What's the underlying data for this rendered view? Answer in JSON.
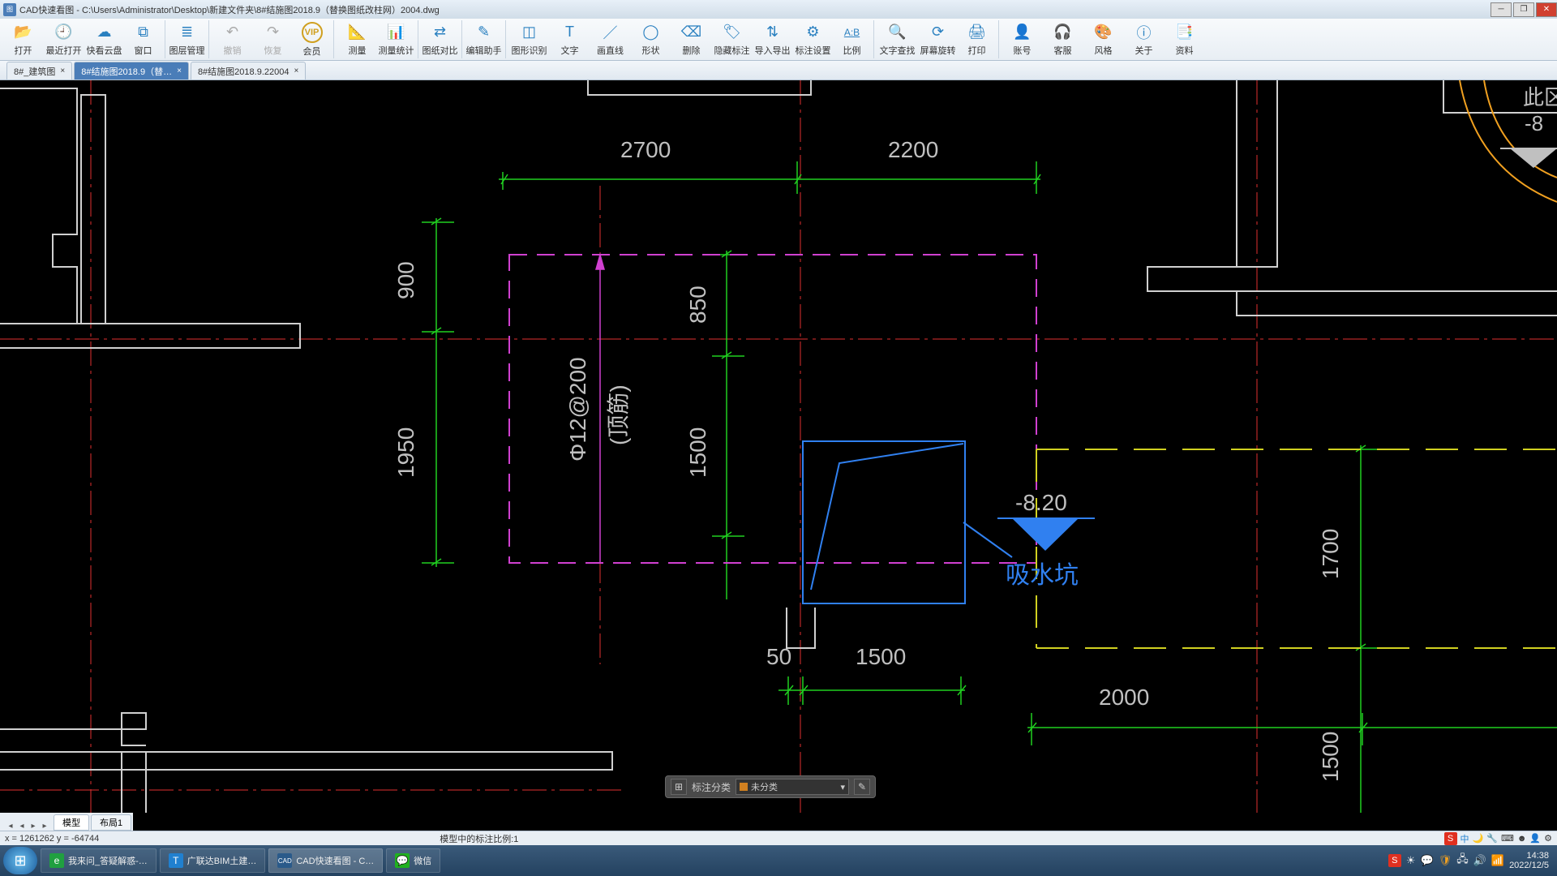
{
  "window": {
    "app_name": "CAD快速看图",
    "file_path": "C:\\Users\\Administrator\\Desktop\\新建文件夹\\8#结施图2018.9（替换图纸改柱网）2004.dwg"
  },
  "toolbar": [
    {
      "label": "打开",
      "icon": "📂",
      "color": "#2a80c0"
    },
    {
      "label": "最近打开",
      "icon": "🕘",
      "color": "#2a80c0"
    },
    {
      "label": "快看云盘",
      "icon": "☁",
      "color": "#2a80c0"
    },
    {
      "label": "窗口",
      "icon": "⧉",
      "color": "#2a80c0",
      "sep": true
    },
    {
      "label": "图层管理",
      "icon": "≣",
      "color": "#2a80c0",
      "sep": true
    },
    {
      "label": "撤销",
      "icon": "↶",
      "color": "#aaaaaa",
      "disabled": true
    },
    {
      "label": "恢复",
      "icon": "↷",
      "color": "#aaaaaa",
      "disabled": true
    },
    {
      "label": "会员",
      "icon": "VIP",
      "color": "#d0a020",
      "sep": true,
      "vip": true
    },
    {
      "label": "测量",
      "icon": "📐",
      "color": "#2a80c0"
    },
    {
      "label": "测量统计",
      "icon": "📊",
      "color": "#2a80c0",
      "sep": true
    },
    {
      "label": "图纸对比",
      "icon": "⇄",
      "color": "#2a80c0",
      "sep": true
    },
    {
      "label": "编辑助手",
      "icon": "✎",
      "color": "#2a80c0",
      "sep": true
    },
    {
      "label": "图形识别",
      "icon": "◫",
      "color": "#2a80c0"
    },
    {
      "label": "文字",
      "icon": "T",
      "color": "#2a80c0"
    },
    {
      "label": "画直线",
      "icon": "／",
      "color": "#2a80c0"
    },
    {
      "label": "形状",
      "icon": "◯",
      "color": "#2a80c0"
    },
    {
      "label": "删除",
      "icon": "⌫",
      "color": "#2a80c0"
    },
    {
      "label": "隐藏标注",
      "icon": "🏷",
      "color": "#2a80c0"
    },
    {
      "label": "导入导出",
      "icon": "⇅",
      "color": "#2a80c0"
    },
    {
      "label": "标注设置",
      "icon": "⚙",
      "color": "#2a80c0"
    },
    {
      "label": "比例",
      "icon": "A:B",
      "color": "#2a80c0",
      "sep": true,
      "ratio": true
    },
    {
      "label": "文字查找",
      "icon": "🔍",
      "color": "#2a80c0"
    },
    {
      "label": "屏幕旋转",
      "icon": "⟳",
      "color": "#2a80c0"
    },
    {
      "label": "打印",
      "icon": "🖨",
      "color": "#2a80c0",
      "sep": true
    },
    {
      "label": "账号",
      "icon": "👤",
      "color": "#2a80c0"
    },
    {
      "label": "客服",
      "icon": "🎧",
      "color": "#2a80c0"
    },
    {
      "label": "风格",
      "icon": "🎨",
      "color": "#2a80c0"
    },
    {
      "label": "关于",
      "icon": "ⓘ",
      "color": "#2a80c0"
    },
    {
      "label": "资料",
      "icon": "📑",
      "color": "#2a80c0"
    }
  ],
  "doc_tabs": [
    {
      "label": "8#_建筑图",
      "active": false
    },
    {
      "label": "8#结施图2018.9（替…",
      "active": true
    },
    {
      "label": "8#结施图2018.9.22004",
      "active": false
    }
  ],
  "drawing": {
    "colors": {
      "red": "#e03030",
      "green": "#20d020",
      "magenta": "#d040d0",
      "yellow": "#d0d020",
      "blue": "#3080f0",
      "white": "#d0d0d0",
      "orange": "#f0a020",
      "gray": "#c0c0c0"
    },
    "dims": {
      "d2700": "2700",
      "d2200": "2200",
      "d900": "900",
      "d1950": "1950",
      "d850": "850",
      "d1500": "1500",
      "d50": "50",
      "d1500b": "1500",
      "d2000": "2000",
      "d1700": "1700",
      "d1500c": "1500",
      "rebar": "Φ12@200",
      "rebar_note": "(顶筋)",
      "elev": "-8.20",
      "pit_label": "吸水坑",
      "region_a": "此区",
      "region_b": "-8"
    }
  },
  "annobar": {
    "label": "标注分类",
    "combo_text": "未分类"
  },
  "layout_tabs": [
    {
      "label": "模型",
      "active": true
    },
    {
      "label": "布局1",
      "active": false
    }
  ],
  "status": {
    "coord": "x = 1261262  y = -64744",
    "scale": "模型中的标注比例:1"
  },
  "input_indicator": {
    "moon": "🌙",
    "lang": "中"
  },
  "taskbar": {
    "items": [
      {
        "label": "我来问_答疑解惑-…",
        "icon": "e",
        "bg": "#20a040"
      },
      {
        "label": "广联达BIM土建…",
        "icon": "T",
        "bg": "#2080d0"
      },
      {
        "label": "CAD快速看图 - C…",
        "icon": "CAD",
        "bg": "#2a5a8a",
        "active": true
      },
      {
        "label": "微信",
        "icon": "💬",
        "bg": "#20b020"
      }
    ],
    "time": "14:38",
    "date": "2022/12/5"
  }
}
